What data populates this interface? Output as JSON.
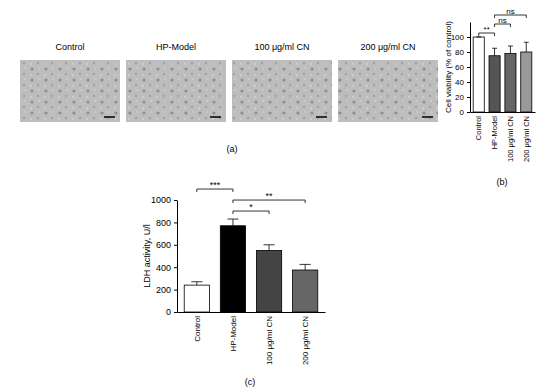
{
  "panel_a": {
    "label": "(a)",
    "images": [
      "Control",
      "HP-Model",
      "100 μg/ml CN",
      "200 μg/ml CN"
    ]
  },
  "chart_data": [
    {
      "type": "bar",
      "label": "(b)",
      "y_label": "Cell viability (% of control)",
      "categories": [
        "Control",
        "HP-Model",
        "100 μg/ml CN",
        "200 μg/ml CN"
      ],
      "values": [
        100,
        75,
        78,
        80
      ],
      "errors": [
        0,
        10,
        10,
        13
      ],
      "colors": [
        "#ffffff",
        "#555555",
        "#666666",
        "#999999"
      ],
      "ylim": [
        0,
        120
      ],
      "yticks": [
        0,
        20,
        40,
        60,
        80,
        100
      ],
      "significance": [
        {
          "between": [
            "Control",
            "HP-Model"
          ],
          "label": "**"
        },
        {
          "between": [
            "HP-Model",
            "100 μg/ml CN"
          ],
          "label": "ns"
        },
        {
          "between": [
            "HP-Model",
            "200 μg/ml CN"
          ],
          "label": "ns"
        }
      ]
    },
    {
      "type": "bar",
      "label": "(c)",
      "y_label": "LDH activity, U/l",
      "categories": [
        "Control",
        "HP-Model",
        "100 μg/ml CN",
        "200 μg/ml CN"
      ],
      "values": [
        240,
        770,
        550,
        375
      ],
      "errors": [
        30,
        60,
        50,
        50
      ],
      "colors": [
        "#ffffff",
        "#000000",
        "#444444",
        "#666666"
      ],
      "ylim": [
        0,
        1000
      ],
      "yticks": [
        0,
        200,
        400,
        600,
        800,
        1000
      ],
      "significance": [
        {
          "between": [
            "HP-Model",
            "100 μg/ml CN"
          ],
          "label": "*"
        },
        {
          "between": [
            "HP-Model",
            "200 μg/ml CN"
          ],
          "label": "**"
        },
        {
          "between": [
            "Control",
            "HP-Model"
          ],
          "label": "***"
        }
      ]
    }
  ]
}
